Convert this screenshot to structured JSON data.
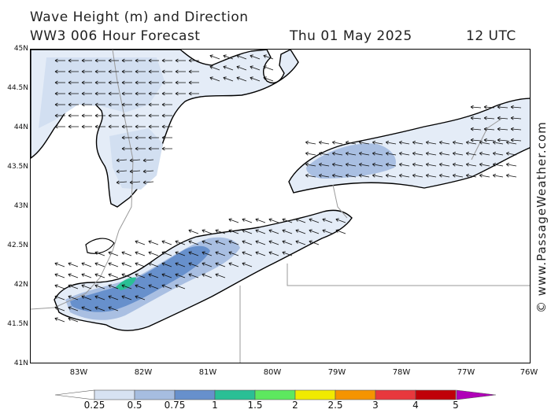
{
  "title": {
    "line1": "Wave Height (m) and Direction",
    "line2": "WW3 006 Hour Forecast",
    "date": "Thu 01 May 2025",
    "time": "12 UTC"
  },
  "credit": "© www.PassageWeather.com",
  "axes": {
    "lat_labels": [
      "45N",
      "44.5N",
      "44N",
      "43.5N",
      "43N",
      "42.5N",
      "42N",
      "41.5N",
      "41N"
    ],
    "lon_labels": [
      "83W",
      "82W",
      "81W",
      "80W",
      "79W",
      "78W",
      "77W",
      "76W"
    ]
  },
  "legend": {
    "ticks": [
      "0.25",
      "0.5",
      "0.75",
      "1",
      "1.5",
      "2",
      "2.5",
      "3",
      "4",
      "5"
    ],
    "colors": [
      "#ffffff",
      "#d7e2f2",
      "#a6bde0",
      "#6790cc",
      "#2abf95",
      "#5de85f",
      "#f1ea00",
      "#f59400",
      "#e8383d",
      "#c00008",
      "#b000b8"
    ]
  },
  "colors": {
    "land": "#ffffff",
    "coast": "#000000",
    "border": "#9a9a9a",
    "arrow": "#111111"
  }
}
